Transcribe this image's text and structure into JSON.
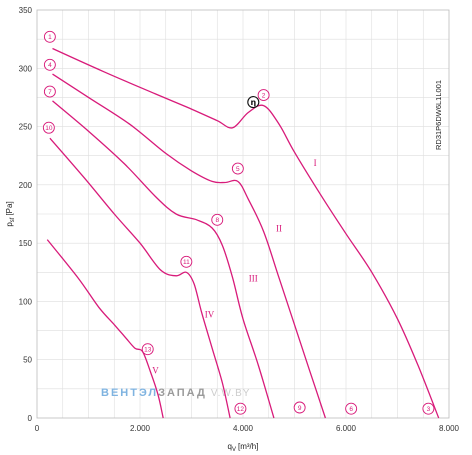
{
  "chart_data": {
    "type": "line",
    "model_code": "RD31P6DW6L1L001",
    "xlabel_main": "q",
    "xlabel_sub": "V",
    "xlabel_unit": "[m³/h]",
    "ylabel_main": "p",
    "ylabel_sub": "sf",
    "ylabel_unit": "[Pa]",
    "xlim": [
      0,
      8000
    ],
    "ylim": [
      0,
      350
    ],
    "x_ticks": [
      {
        "value": 0,
        "label": "0"
      },
      {
        "value": 2000,
        "label": "2.000"
      },
      {
        "value": 4000,
        "label": "4.000"
      },
      {
        "value": 6000,
        "label": "6.000"
      },
      {
        "value": 8000,
        "label": "8.000"
      }
    ],
    "y_ticks": [
      {
        "value": 0,
        "label": "0"
      },
      {
        "value": 50,
        "label": "50"
      },
      {
        "value": 100,
        "label": "100"
      },
      {
        "value": 150,
        "label": "150"
      },
      {
        "value": 200,
        "label": "200"
      },
      {
        "value": 250,
        "label": "250"
      },
      {
        "value": 300,
        "label": "300"
      },
      {
        "value": 350,
        "label": "350"
      }
    ],
    "grid": true,
    "line_color": "#d81b7a",
    "series": [
      {
        "points": [
          [
            300,
            317
          ],
          [
            1300,
            297
          ],
          [
            2300,
            278
          ],
          [
            3000,
            265
          ],
          [
            3500,
            255
          ],
          [
            3800,
            249
          ],
          [
            4100,
            262
          ],
          [
            4400,
            268
          ],
          [
            4700,
            252
          ],
          [
            5000,
            228
          ],
          [
            5500,
            192
          ],
          [
            6000,
            158
          ],
          [
            6500,
            125
          ],
          [
            7000,
            85
          ],
          [
            7400,
            45
          ],
          [
            7800,
            0
          ]
        ]
      },
      {
        "points": [
          [
            300,
            295
          ],
          [
            1000,
            275
          ],
          [
            1800,
            252
          ],
          [
            2500,
            227
          ],
          [
            3000,
            212
          ],
          [
            3400,
            203
          ],
          [
            3650,
            202
          ],
          [
            3900,
            203
          ],
          [
            4100,
            188
          ],
          [
            4400,
            160
          ],
          [
            4700,
            120
          ],
          [
            5000,
            80
          ],
          [
            5300,
            40
          ],
          [
            5600,
            0
          ]
        ]
      },
      {
        "points": [
          [
            300,
            272
          ],
          [
            1000,
            246
          ],
          [
            1700,
            218
          ],
          [
            2300,
            190
          ],
          [
            2700,
            175
          ],
          [
            3100,
            170
          ],
          [
            3400,
            163
          ],
          [
            3600,
            148
          ],
          [
            3800,
            120
          ],
          [
            4000,
            85
          ],
          [
            4300,
            45
          ],
          [
            4600,
            0
          ]
        ]
      },
      {
        "points": [
          [
            250,
            240
          ],
          [
            900,
            207
          ],
          [
            1500,
            175
          ],
          [
            2000,
            150
          ],
          [
            2400,
            127
          ],
          [
            2700,
            122
          ],
          [
            2900,
            125
          ],
          [
            3050,
            115
          ],
          [
            3200,
            90
          ],
          [
            3400,
            60
          ],
          [
            3600,
            30
          ],
          [
            3750,
            0
          ]
        ]
      },
      {
        "points": [
          [
            200,
            153
          ],
          [
            800,
            120
          ],
          [
            1200,
            95
          ],
          [
            1500,
            80
          ],
          [
            1700,
            70
          ],
          [
            1900,
            60
          ],
          [
            2050,
            57
          ],
          [
            2200,
            40
          ],
          [
            2350,
            20
          ],
          [
            2450,
            0
          ]
        ]
      }
    ],
    "markers": [
      {
        "label": "1",
        "x": 250,
        "y": 327
      },
      {
        "label": "2",
        "x": 4400,
        "y": 277
      },
      {
        "label": "3",
        "x": 7600,
        "y": 8
      },
      {
        "label": "4",
        "x": 250,
        "y": 303
      },
      {
        "label": "5",
        "x": 3900,
        "y": 214
      },
      {
        "label": "6",
        "x": 6100,
        "y": 8
      },
      {
        "label": "7",
        "x": 250,
        "y": 280
      },
      {
        "label": "8",
        "x": 3500,
        "y": 170
      },
      {
        "label": "9",
        "x": 5100,
        "y": 9
      },
      {
        "label": "10",
        "x": 230,
        "y": 249
      },
      {
        "label": "11",
        "x": 2900,
        "y": 134
      },
      {
        "label": "12",
        "x": 3950,
        "y": 8
      },
      {
        "label": "13",
        "x": 2150,
        "y": 59
      }
    ],
    "eta_marker": {
      "label": "η",
      "x": 4200,
      "y": 271
    },
    "zone_labels": [
      {
        "label": "I",
        "x": 5400,
        "y": 216
      },
      {
        "label": "II",
        "x": 4700,
        "y": 160
      },
      {
        "label": "III",
        "x": 4200,
        "y": 117
      },
      {
        "label": "IV",
        "x": 3350,
        "y": 86
      },
      {
        "label": "V",
        "x": 2300,
        "y": 38
      }
    ],
    "watermark": {
      "part1": "ВЕНТЭЛ",
      "part2": "ЗАПАД",
      "part3": "V.W.BY",
      "color1": "#7fb3e0",
      "color2": "#9a9a9a",
      "color3": "#cccccc"
    }
  }
}
